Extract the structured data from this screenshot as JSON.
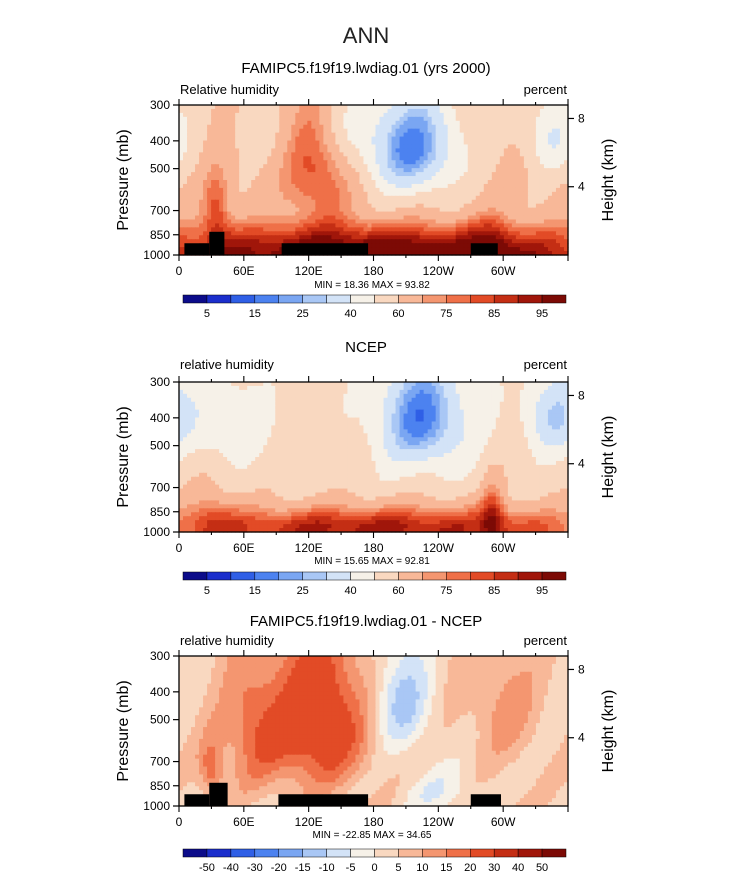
{
  "figure": {
    "title": "ANN"
  },
  "colors": {
    "scale_a": [
      "#0c0c8a",
      "#1b2ecc",
      "#2f5fe6",
      "#4c82f0",
      "#7aa6f2",
      "#a9c7f5",
      "#d3e3f7",
      "#f6f1e8",
      "#f9d8c0",
      "#f8b898",
      "#f49670",
      "#ef7048",
      "#e24b26",
      "#c42e14",
      "#a0160a",
      "#7c0a05"
    ],
    "scale_b": [
      "#0c0c8a",
      "#1b2ecc",
      "#2f5fe6",
      "#4c82f0",
      "#7aa6f2",
      "#a9c7f5",
      "#d3e3f7",
      "#f6f1e8",
      "#f9d8c0",
      "#f8b898",
      "#f49670",
      "#ef7048",
      "#e24b26",
      "#c42e14",
      "#a0160a",
      "#7c0a05"
    ]
  },
  "chart_data": [
    {
      "type": "heatmap",
      "title": "FAMIPC5.f19f19.lwdiag.01 (yrs 2000)",
      "left_label": "Relative humidity",
      "right_label": "percent",
      "ylabel": "Pressure (mb)",
      "y2label": "Height (km)",
      "yticks": [
        "300",
        "400",
        "500",
        "700",
        "850",
        "1000"
      ],
      "y2ticks": [
        "8",
        "4"
      ],
      "xticks": [
        "0",
        "60E",
        "120E",
        "180",
        "120W",
        "60W"
      ],
      "stats": "MIN =   18.36   MAX =   93.82",
      "colorbar_labels": [
        "5",
        "15",
        "25",
        "40",
        "60",
        "75",
        "85",
        "95"
      ],
      "scale": "scale_a",
      "field": {
        "base": 62,
        "blobs": [
          {
            "lon": 130,
            "p": 500,
            "dlon": 22,
            "dp": 180,
            "amp": 22
          },
          {
            "lon": 35,
            "p": 700,
            "dlon": 9,
            "dp": 140,
            "amp": 20
          },
          {
            "lon": 215,
            "p": 420,
            "dlon": 32,
            "dp": 130,
            "amp": -44
          },
          {
            "lon": 150,
            "p": 350,
            "dlon": 18,
            "dp": 90,
            "amp": -12
          },
          {
            "lon": 345,
            "p": 380,
            "dlon": 18,
            "dp": 90,
            "amp": -22
          },
          {
            "lon": 70,
            "p": 350,
            "dlon": 18,
            "dp": 80,
            "amp": -8
          },
          {
            "lon": 180,
            "p": 950,
            "dlon": 120,
            "dp": 120,
            "amp": 24
          },
          {
            "lon": 290,
            "p": 900,
            "dlon": 15,
            "dp": 140,
            "amp": 12
          }
        ],
        "boundary_amp": 20
      },
      "topography": [
        {
          "lon0": 5,
          "lon1": 28,
          "p": 910
        },
        {
          "lon0": 28,
          "lon1": 42,
          "p": 830
        },
        {
          "lon0": 95,
          "lon1": 175,
          "p": 910
        },
        {
          "lon0": 270,
          "lon1": 295,
          "p": 910
        }
      ]
    },
    {
      "type": "heatmap",
      "title": "NCEP",
      "left_label": "relative humidity",
      "right_label": "percent",
      "ylabel": "Pressure (mb)",
      "y2label": "Height (km)",
      "yticks": [
        "300",
        "400",
        "500",
        "700",
        "850",
        "1000"
      ],
      "y2ticks": [
        "8",
        "4"
      ],
      "xticks": [
        "0",
        "60E",
        "120E",
        "180",
        "120W",
        "60W"
      ],
      "stats": "MIN =   15.65   MAX =   92.81",
      "colorbar_labels": [
        "5",
        "15",
        "25",
        "40",
        "60",
        "75",
        "85",
        "95"
      ],
      "scale": "scale_a",
      "field": {
        "base": 55,
        "blobs": [
          {
            "lon": 225,
            "p": 400,
            "dlon": 30,
            "dp": 130,
            "amp": -38
          },
          {
            "lon": 345,
            "p": 390,
            "dlon": 18,
            "dp": 90,
            "amp": -25
          },
          {
            "lon": 45,
            "p": 420,
            "dlon": 25,
            "dp": 100,
            "amp": -15
          },
          {
            "lon": 290,
            "p": 850,
            "dlon": 8,
            "dp": 160,
            "amp": 20
          },
          {
            "lon": 30,
            "p": 850,
            "dlon": 15,
            "dp": 150,
            "amp": 12
          },
          {
            "lon": 180,
            "p": 960,
            "dlon": 140,
            "dp": 110,
            "amp": 28
          }
        ],
        "boundary_amp": 10
      },
      "topography": []
    },
    {
      "type": "heatmap",
      "title": "FAMIPC5.f19f19.lwdiag.01 - NCEP",
      "left_label": "relative humidity",
      "right_label": "percent",
      "ylabel": "Pressure (mb)",
      "y2label": "Height (km)",
      "yticks": [
        "300",
        "400",
        "500",
        "700",
        "850",
        "1000"
      ],
      "y2ticks": [
        "8",
        "4"
      ],
      "xticks": [
        "0",
        "60E",
        "120E",
        "180",
        "120W",
        "60W"
      ],
      "stats": "MIN =  -22.85   MAX =   34.65",
      "colorbar_labels": [
        "-50",
        "-40",
        "-30",
        "-20",
        "-15",
        "-10",
        "-5",
        "0",
        "5",
        "10",
        "15",
        "20",
        "30",
        "40",
        "50"
      ],
      "scale": "scale_b",
      "field": {
        "base": 4,
        "blobs": [
          {
            "lon": 130,
            "p": 500,
            "dlon": 30,
            "dp": 220,
            "amp": 26
          },
          {
            "lon": 70,
            "p": 550,
            "dlon": 20,
            "dp": 200,
            "amp": 14
          },
          {
            "lon": 205,
            "p": 430,
            "dlon": 20,
            "dp": 130,
            "amp": -16
          },
          {
            "lon": 300,
            "p": 450,
            "dlon": 22,
            "dp": 150,
            "amp": 8
          },
          {
            "lon": 30,
            "p": 750,
            "dlon": 8,
            "dp": 120,
            "amp": 14
          },
          {
            "lon": 240,
            "p": 900,
            "dlon": 25,
            "dp": 120,
            "amp": -8
          }
        ],
        "boundary_amp": 0
      },
      "topography": [
        {
          "lon0": 5,
          "lon1": 28,
          "p": 910
        },
        {
          "lon0": 28,
          "lon1": 45,
          "p": 830
        },
        {
          "lon0": 92,
          "lon1": 175,
          "p": 910
        },
        {
          "lon0": 270,
          "lon1": 298,
          "p": 910
        }
      ]
    }
  ]
}
